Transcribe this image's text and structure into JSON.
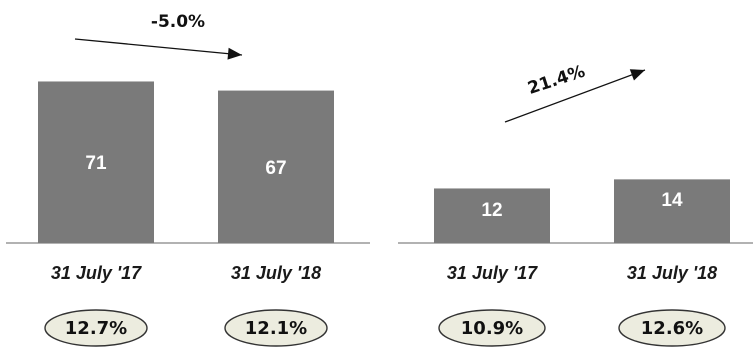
{
  "colors": {
    "bar": "#7a7a7a",
    "axis": "#999999",
    "pill_fill": "#ececdf",
    "pill_stroke": "#333333",
    "arrow": "#111111"
  },
  "chart_data": [
    {
      "type": "bar",
      "categories": [
        "31 July '17",
        "31 July '18"
      ],
      "values": [
        71,
        67
      ],
      "value_labels": [
        "71",
        "67"
      ],
      "change_label": "-5.0%",
      "change_direction": "down",
      "ratio_labels": [
        "12.7%",
        "12.1%"
      ],
      "ylim": [
        0,
        80
      ],
      "grid": false
    },
    {
      "type": "bar",
      "categories": [
        "31 July '17",
        "31 July '18"
      ],
      "values": [
        12,
        14
      ],
      "value_labels": [
        "12",
        "14"
      ],
      "change_label": "21.4%",
      "change_direction": "up",
      "ratio_labels": [
        "10.9%",
        "12.6%"
      ],
      "ylim": [
        0,
        22
      ],
      "grid": false
    }
  ]
}
